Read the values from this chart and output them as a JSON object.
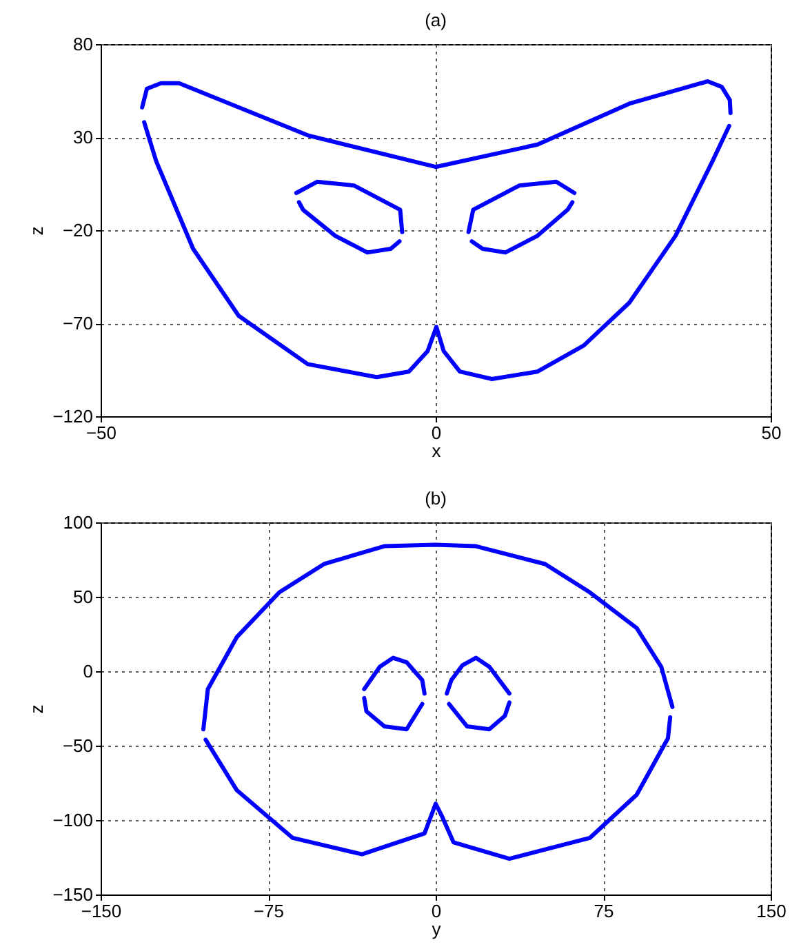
{
  "chart_data": [
    {
      "type": "line",
      "title": "(a)",
      "xlabel": "x",
      "ylabel": "z",
      "xlim": [
        -50,
        50
      ],
      "xticks": [
        -50,
        0,
        50
      ],
      "ylim": [
        -120,
        80
      ],
      "yticks": [
        -120,
        -70,
        -20,
        30,
        80
      ],
      "grid": true,
      "marker": "none",
      "line_style": "solid",
      "series": [
        {
          "color": "#0000ff",
          "x": [
            -43.8,
            -43.1,
            -41,
            -38.3,
            -19.1,
            0,
            15.2,
            28.9,
            40.6,
            42.7,
            43.9,
            44
          ],
          "values": [
            46,
            56,
            59,
            59,
            31,
            14,
            26,
            48,
            60,
            57,
            50,
            43
          ]
        },
        {
          "color": "#0000ff",
          "x": [
            -43.5,
            -41.7,
            -36.2,
            -29.4,
            -19.1,
            -8.8,
            -4,
            -1.2,
            0.1,
            1.2,
            3.6,
            8.4,
            15.2,
            22.1,
            28.9,
            35.8,
            41.3,
            43.8
          ],
          "values": [
            38,
            17,
            -30,
            -66,
            -92,
            -99,
            -96,
            -85,
            -72,
            -85,
            -96,
            -100,
            -96,
            -82,
            -59,
            -23,
            17,
            36
          ]
        },
        {
          "color": "#0000ff",
          "x": [
            -20.8,
            -17.7,
            -12.2,
            -5.3,
            -5
          ],
          "values": [
            0,
            6,
            4,
            -9,
            -21
          ]
        },
        {
          "color": "#0000ff",
          "x": [
            -20.4,
            -19.8,
            -15,
            -10.2,
            -6.7,
            -5.4
          ],
          "values": [
            -5,
            -9,
            -23,
            -32,
            -30,
            -26
          ]
        },
        {
          "color": "#0000ff",
          "x": [
            4.9,
            5.6,
            12.5,
            18,
            20.7
          ],
          "values": [
            -21,
            -9,
            4,
            6,
            0
          ]
        },
        {
          "color": "#0000ff",
          "x": [
            5.4,
            7,
            10.4,
            15.2,
            19.7,
            20.4
          ],
          "values": [
            -26,
            -30,
            -32,
            -23,
            -9,
            -5
          ]
        }
      ]
    },
    {
      "type": "line",
      "title": "(b)",
      "xlabel": "y",
      "ylabel": "z",
      "xlim": [
        -150,
        150
      ],
      "xticks": [
        -150,
        -75,
        0,
        75,
        150
      ],
      "ylim": [
        -150,
        100
      ],
      "yticks": [
        -150,
        -100,
        -50,
        0,
        50,
        100
      ],
      "grid": true,
      "marker": "none",
      "line_style": "solid",
      "series": [
        {
          "color": "#0000ff",
          "x": [
            -104,
            -102,
            -89,
            -70,
            -50,
            -23,
            0,
            18,
            49,
            69,
            90,
            101,
            106
          ],
          "values": [
            -39,
            -12,
            23,
            53,
            72,
            84,
            85,
            84,
            72,
            53,
            29,
            3,
            -24
          ]
        },
        {
          "color": "#0000ff",
          "x": [
            -103,
            -89,
            -64,
            -33,
            -5,
            0,
            3,
            8,
            33,
            69,
            90,
            104,
            105
          ],
          "values": [
            -46,
            -80,
            -112,
            -123,
            -109,
            -89,
            -98,
            -115,
            -126,
            -112,
            -83,
            -45,
            -31
          ]
        },
        {
          "color": "#0000ff",
          "x": [
            -32,
            -25,
            -19,
            -13,
            -6,
            -5
          ],
          "values": [
            -12,
            3,
            9,
            6,
            -6,
            -15
          ]
        },
        {
          "color": "#0000ff",
          "x": [
            -32,
            -31,
            -23,
            -13,
            -6
          ],
          "values": [
            -18,
            -27,
            -37,
            -39,
            -22
          ]
        },
        {
          "color": "#0000ff",
          "x": [
            5,
            7,
            12,
            18,
            24,
            33
          ],
          "values": [
            -15,
            -6,
            4,
            9,
            3,
            -15
          ]
        },
        {
          "color": "#0000ff",
          "x": [
            6,
            14,
            24,
            31,
            33
          ],
          "values": [
            -22,
            -37,
            -39,
            -30,
            -21
          ]
        }
      ]
    }
  ]
}
